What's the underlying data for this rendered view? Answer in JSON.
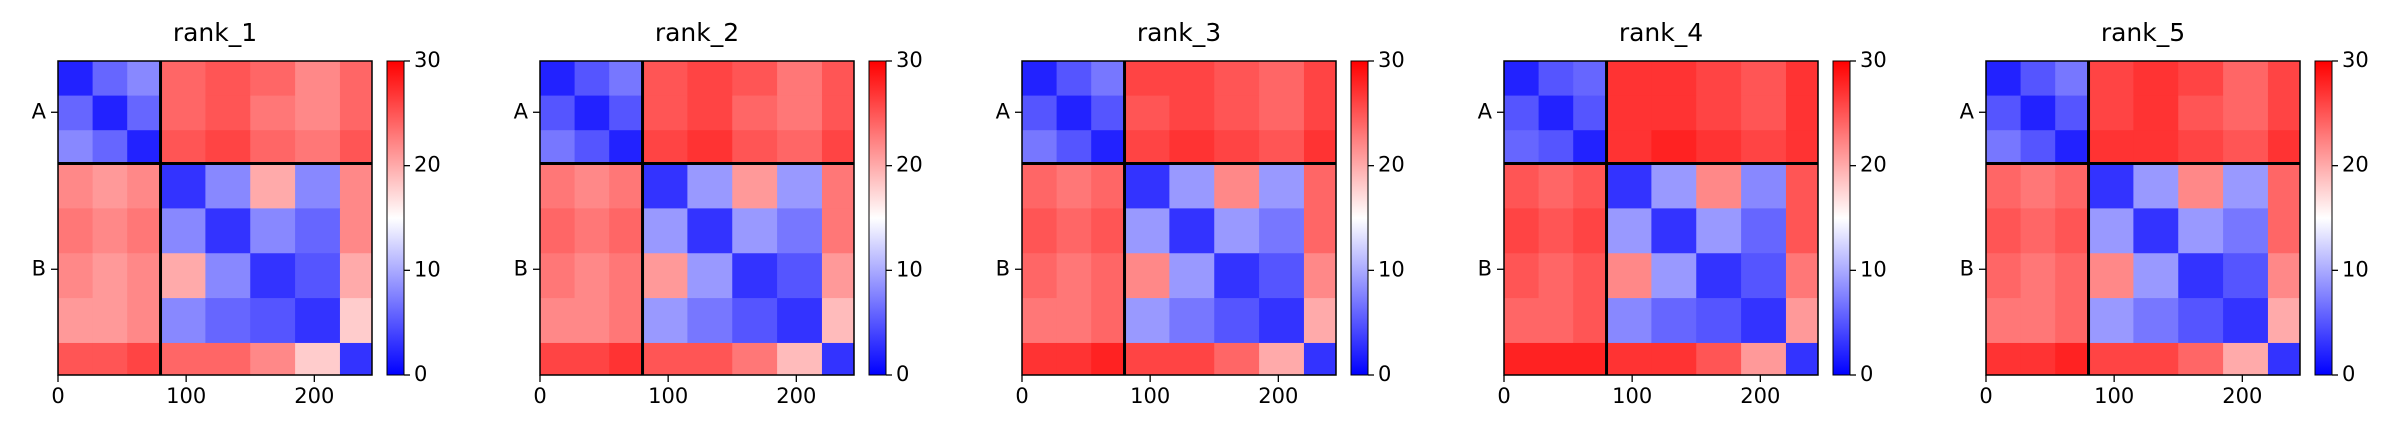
{
  "chart_data": [
    {
      "type": "heatmap",
      "title": "rank_1",
      "colormap": "bwr",
      "x_edges": [
        0,
        27,
        54,
        80,
        115,
        150,
        185,
        220,
        245
      ],
      "values": [
        [
          2,
          6,
          8,
          24,
          25,
          24,
          22,
          24
        ],
        [
          6,
          2,
          6,
          24,
          25,
          23,
          22,
          24
        ],
        [
          8,
          6,
          2,
          25,
          26,
          24,
          23,
          25
        ],
        [
          22,
          21,
          22,
          3,
          8,
          20,
          8,
          22
        ],
        [
          23,
          22,
          23,
          8,
          3,
          8,
          6,
          22
        ],
        [
          22,
          21,
          22,
          20,
          8,
          3,
          5,
          20
        ],
        [
          21,
          21,
          22,
          8,
          6,
          5,
          3,
          18
        ],
        [
          25,
          25,
          26,
          24,
          24,
          22,
          18,
          3
        ]
      ],
      "xlim": [
        0,
        245
      ],
      "ylim": [
        245,
        0
      ],
      "xticks": [
        0,
        100,
        200
      ],
      "yticks": [
        {
          "value": 40,
          "label": "A"
        },
        {
          "value": 162.5,
          "label": "B"
        }
      ],
      "chain_boundaries": [
        80
      ],
      "clim": [
        0,
        30
      ],
      "cticks": [
        0,
        10,
        20,
        30
      ]
    },
    {
      "type": "heatmap",
      "title": "rank_2",
      "colormap": "bwr",
      "x_edges": [
        0,
        27,
        54,
        80,
        115,
        150,
        185,
        220,
        245
      ],
      "values": [
        [
          2,
          5,
          7,
          25,
          26,
          25,
          23,
          25
        ],
        [
          5,
          2,
          5,
          25,
          26,
          24,
          23,
          25
        ],
        [
          7,
          5,
          2,
          26,
          27,
          25,
          24,
          26
        ],
        [
          23,
          22,
          23,
          3,
          9,
          21,
          9,
          23
        ],
        [
          24,
          23,
          24,
          9,
          3,
          9,
          7,
          23
        ],
        [
          23,
          22,
          23,
          21,
          9,
          3,
          5,
          21
        ],
        [
          22,
          22,
          23,
          9,
          7,
          5,
          3,
          19
        ],
        [
          26,
          26,
          27,
          25,
          25,
          23,
          19,
          3
        ]
      ],
      "xlim": [
        0,
        245
      ],
      "ylim": [
        245,
        0
      ],
      "xticks": [
        0,
        100,
        200
      ],
      "yticks": [
        {
          "value": 40,
          "label": "A"
        },
        {
          "value": 162.5,
          "label": "B"
        }
      ],
      "chain_boundaries": [
        80
      ],
      "clim": [
        0,
        30
      ],
      "cticks": [
        0,
        10,
        20,
        30
      ]
    },
    {
      "type": "heatmap",
      "title": "rank_3",
      "colormap": "bwr",
      "x_edges": [
        0,
        27,
        54,
        80,
        115,
        150,
        185,
        220,
        245
      ],
      "values": [
        [
          2,
          5,
          7,
          26,
          26,
          25,
          24,
          26
        ],
        [
          5,
          2,
          5,
          25,
          26,
          25,
          24,
          26
        ],
        [
          7,
          5,
          2,
          26,
          27,
          26,
          25,
          27
        ],
        [
          24,
          23,
          24,
          3,
          9,
          22,
          9,
          24
        ],
        [
          25,
          24,
          25,
          9,
          3,
          9,
          7,
          24
        ],
        [
          24,
          23,
          24,
          22,
          9,
          3,
          5,
          22
        ],
        [
          23,
          23,
          24,
          9,
          7,
          5,
          3,
          20
        ],
        [
          27,
          27,
          28,
          26,
          26,
          24,
          20,
          3
        ]
      ],
      "xlim": [
        0,
        245
      ],
      "ylim": [
        245,
        0
      ],
      "xticks": [
        0,
        100,
        200
      ],
      "yticks": [
        {
          "value": 40,
          "label": "A"
        },
        {
          "value": 162.5,
          "label": "B"
        }
      ],
      "chain_boundaries": [
        80
      ],
      "clim": [
        0,
        30
      ],
      "cticks": [
        0,
        10,
        20,
        30
      ]
    },
    {
      "type": "heatmap",
      "title": "rank_4",
      "colormap": "bwr",
      "x_edges": [
        0,
        27,
        54,
        80,
        115,
        150,
        185,
        220,
        245
      ],
      "values": [
        [
          2,
          5,
          6,
          27,
          27,
          26,
          25,
          27
        ],
        [
          5,
          2,
          5,
          27,
          27,
          26,
          25,
          27
        ],
        [
          6,
          5,
          2,
          27,
          28,
          27,
          26,
          27
        ],
        [
          25,
          24,
          25,
          3,
          9,
          22,
          8,
          25
        ],
        [
          26,
          25,
          26,
          9,
          3,
          9,
          6,
          25
        ],
        [
          25,
          24,
          25,
          22,
          9,
          3,
          5,
          23
        ],
        [
          24,
          24,
          25,
          8,
          6,
          5,
          3,
          21
        ],
        [
          28,
          28,
          28,
          27,
          27,
          25,
          21,
          3
        ]
      ],
      "xlim": [
        0,
        245
      ],
      "ylim": [
        245,
        0
      ],
      "xticks": [
        0,
        100,
        200
      ],
      "yticks": [
        {
          "value": 40,
          "label": "A"
        },
        {
          "value": 162.5,
          "label": "B"
        }
      ],
      "chain_boundaries": [
        80
      ],
      "clim": [
        0,
        30
      ],
      "cticks": [
        0,
        10,
        20,
        30
      ]
    },
    {
      "type": "heatmap",
      "title": "rank_5",
      "colormap": "bwr",
      "x_edges": [
        0,
        27,
        54,
        80,
        115,
        150,
        185,
        220,
        245
      ],
      "values": [
        [
          2,
          5,
          7,
          26,
          27,
          26,
          24,
          26
        ],
        [
          5,
          2,
          5,
          26,
          27,
          25,
          24,
          26
        ],
        [
          7,
          5,
          2,
          27,
          27,
          26,
          25,
          27
        ],
        [
          24,
          23,
          24,
          3,
          9,
          22,
          9,
          24
        ],
        [
          25,
          24,
          25,
          9,
          3,
          9,
          7,
          24
        ],
        [
          24,
          23,
          24,
          22,
          9,
          3,
          5,
          22
        ],
        [
          23,
          23,
          24,
          9,
          7,
          5,
          3,
          20
        ],
        [
          27,
          27,
          28,
          26,
          26,
          24,
          20,
          3
        ]
      ],
      "xlim": [
        0,
        245
      ],
      "ylim": [
        245,
        0
      ],
      "xticks": [
        0,
        100,
        200
      ],
      "yticks": [
        {
          "value": 40,
          "label": "A"
        },
        {
          "value": 162.5,
          "label": "B"
        }
      ],
      "chain_boundaries": [
        80
      ],
      "clim": [
        0,
        30
      ],
      "cticks": [
        0,
        10,
        20,
        30
      ]
    }
  ]
}
